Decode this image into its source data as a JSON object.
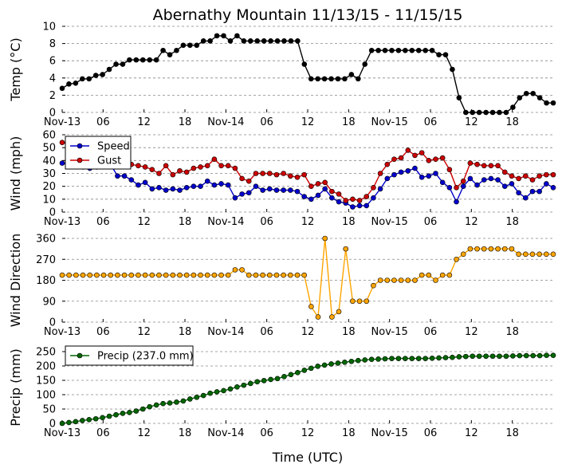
{
  "chart_data": [
    {
      "type": "line",
      "id": "temp",
      "title": "Abernathy Mountain 11/13/15 - 11/15/15",
      "ylabel": "Temp (°C)",
      "ylim": [
        0,
        10
      ],
      "yticks": [
        0,
        2,
        4,
        6,
        8,
        10
      ],
      "xtick_labels": [
        "Nov-13",
        "06",
        "12",
        "18",
        "Nov-14",
        "06",
        "12",
        "18",
        "Nov-15",
        "06",
        "12",
        "18"
      ],
      "grid": true,
      "series": [
        {
          "name": "Temp",
          "color": "#000000",
          "values": [
            2.8,
            3.3,
            3.4,
            3.9,
            3.9,
            4.3,
            4.4,
            5.0,
            5.6,
            5.6,
            6.1,
            6.1,
            6.1,
            6.1,
            6.1,
            7.2,
            6.7,
            7.2,
            7.8,
            7.8,
            7.8,
            8.3,
            8.3,
            8.9,
            8.9,
            8.3,
            8.9,
            8.3,
            8.3,
            8.3,
            8.3,
            8.3,
            8.3,
            8.3,
            8.3,
            8.3,
            5.6,
            3.9,
            3.9,
            3.9,
            3.9,
            3.9,
            3.9,
            4.4,
            3.9,
            5.6,
            7.2,
            7.2,
            7.2,
            7.2,
            7.2,
            7.2,
            7.2,
            7.2,
            7.2,
            7.2,
            6.7,
            6.7,
            5.0,
            1.7,
            0.0,
            0.0,
            0.0,
            0.0,
            0.0,
            0.0,
            0.0,
            0.6,
            1.7,
            2.2,
            2.2,
            1.7,
            1.1,
            1.1
          ]
        }
      ]
    },
    {
      "type": "line",
      "id": "wind",
      "ylabel": "Wind (mph)",
      "ylim": [
        0,
        60
      ],
      "yticks": [
        0,
        10,
        20,
        30,
        40,
        50,
        60
      ],
      "xtick_labels": [
        "Nov-13",
        "06",
        "12",
        "18",
        "Nov-14",
        "06",
        "12",
        "18",
        "Nov-15",
        "06",
        "12",
        "18"
      ],
      "grid": true,
      "legend": "top-left",
      "series": [
        {
          "name": "Speed",
          "color": "#0000cc",
          "values": [
            38,
            37,
            36,
            35,
            34,
            35,
            36,
            37,
            28,
            28,
            25,
            21,
            23,
            18,
            19,
            17,
            18,
            17,
            19,
            20,
            20,
            24,
            21,
            22,
            21,
            11,
            14,
            15,
            20,
            17,
            18,
            17,
            17,
            17,
            16,
            12,
            10,
            13,
            18,
            11,
            8,
            7,
            4,
            5,
            5,
            11,
            18,
            26,
            29,
            31,
            32,
            34,
            27,
            28,
            30,
            23,
            19,
            8,
            20,
            26,
            21,
            25,
            26,
            25,
            20,
            22,
            15,
            11,
            16,
            16,
            22,
            19
          ]
        },
        {
          "name": "Gust",
          "color": "#cc0000",
          "values": [
            54,
            53,
            52,
            51,
            50,
            49,
            48,
            47,
            42,
            40,
            37,
            36,
            35,
            33,
            30,
            36,
            29,
            32,
            31,
            34,
            35,
            36,
            41,
            36,
            36,
            34,
            26,
            24,
            30,
            30,
            30,
            29,
            30,
            28,
            27,
            29,
            20,
            22,
            23,
            16,
            14,
            9,
            10,
            9,
            12,
            19,
            30,
            37,
            41,
            42,
            48,
            44,
            46,
            40,
            41,
            42,
            33,
            19,
            24,
            38,
            37,
            36,
            36,
            36,
            31,
            28,
            26,
            28,
            25,
            28,
            29,
            29
          ]
        }
      ]
    },
    {
      "type": "line",
      "id": "direction",
      "ylabel": "Wind Direction",
      "ylim": [
        0,
        360
      ],
      "yticks": [
        0,
        90,
        180,
        270,
        360
      ],
      "xtick_labels": [
        "Nov-13",
        "06",
        "12",
        "18",
        "Nov-14",
        "06",
        "12",
        "18",
        "Nov-15",
        "06",
        "12",
        "18"
      ],
      "grid": true,
      "series": [
        {
          "name": "Direction",
          "color": "#ffa500",
          "values": [
            202,
            202,
            202,
            202,
            202,
            202,
            202,
            202,
            202,
            202,
            202,
            202,
            202,
            202,
            202,
            202,
            202,
            202,
            202,
            202,
            202,
            202,
            202,
            202,
            202,
            225,
            225,
            202,
            202,
            202,
            202,
            202,
            202,
            202,
            202,
            202,
            67,
            22,
            360,
            22,
            45,
            315,
            90,
            90,
            90,
            157,
            180,
            180,
            180,
            180,
            180,
            180,
            202,
            202,
            180,
            202,
            202,
            270,
            292,
            315,
            315,
            315,
            315,
            315,
            315,
            315,
            292,
            292,
            292,
            292,
            292,
            292
          ]
        }
      ]
    },
    {
      "type": "line",
      "id": "precip",
      "ylabel": "Precip (mm)",
      "xlabel": "Time (UTC)",
      "ylim": [
        0,
        250
      ],
      "yticks": [
        0,
        50,
        100,
        150,
        200,
        250
      ],
      "xtick_labels": [
        "Nov-13",
        "06",
        "12",
        "18",
        "Nov-14",
        "06",
        "12",
        "18",
        "Nov-15",
        "06",
        "12",
        "18"
      ],
      "grid": true,
      "legend": "top-left",
      "series": [
        {
          "name": "Precip (237.0 mm)",
          "color": "#006600",
          "values": [
            0,
            3,
            6,
            10,
            13,
            16,
            20,
            25,
            30,
            35,
            38,
            43,
            50,
            58,
            64,
            69,
            71,
            74,
            78,
            85,
            91,
            97,
            105,
            110,
            114,
            120,
            127,
            133,
            139,
            145,
            149,
            153,
            156,
            163,
            170,
            177,
            185,
            192,
            199,
            203,
            207,
            210,
            213,
            216,
            219,
            221,
            223,
            224,
            225,
            226,
            226,
            226,
            226,
            226,
            226,
            227,
            228,
            229,
            230,
            232,
            233,
            234,
            234,
            234,
            234,
            234,
            234,
            235,
            236,
            236,
            236,
            236,
            237,
            237
          ]
        }
      ]
    }
  ]
}
